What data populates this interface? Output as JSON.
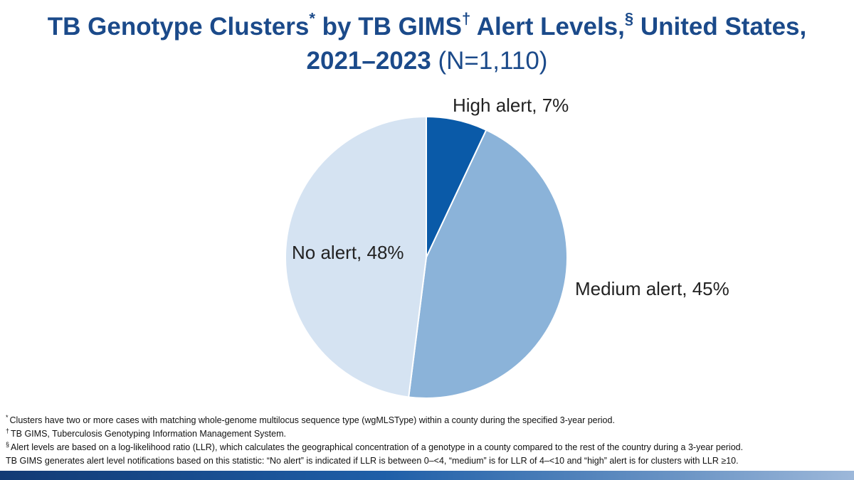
{
  "title": {
    "line1_a": "TB Genotype Clusters",
    "mark1": "*",
    "line1_b": " by TB GIMS",
    "mark2": "†",
    "line1_c": " Alert Levels,",
    "mark3": "§",
    "line1_d": " United States,",
    "line2_years": "2021–2023",
    "line2_n": "(N=1,110)"
  },
  "chart_data": {
    "type": "pie",
    "slices": [
      {
        "label": "High alert, 7%",
        "value": 7,
        "color": "#0a5aa8"
      },
      {
        "label": "Medium alert, 45%",
        "value": 45,
        "color": "#8bb3d9"
      },
      {
        "label": "No alert, 48%",
        "value": 48,
        "color": "#d5e3f2"
      }
    ]
  },
  "footnotes": {
    "f1_mark": "*",
    "f1_text": "Clusters have two or more cases with matching whole-genome multilocus sequence type (wgMLSType) within a county during the specified 3-year period.",
    "f2_mark": "†",
    "f2_text": "TB GIMS, Tuberculosis Genotyping Information Management System.",
    "f3_mark": "§",
    "f3_text": "Alert levels are based on a log-likelihood ratio (LLR), which calculates the geographical concentration of a genotype in a county compared to the rest of the country during a 3-year period.",
    "f4_text": "TB GIMS generates alert level notifications based on this statistic: “No alert” is indicated if LLR is between 0–<4, “medium” is for LLR of 4–<10 and “high” alert is for clusters with LLR ≥10."
  }
}
